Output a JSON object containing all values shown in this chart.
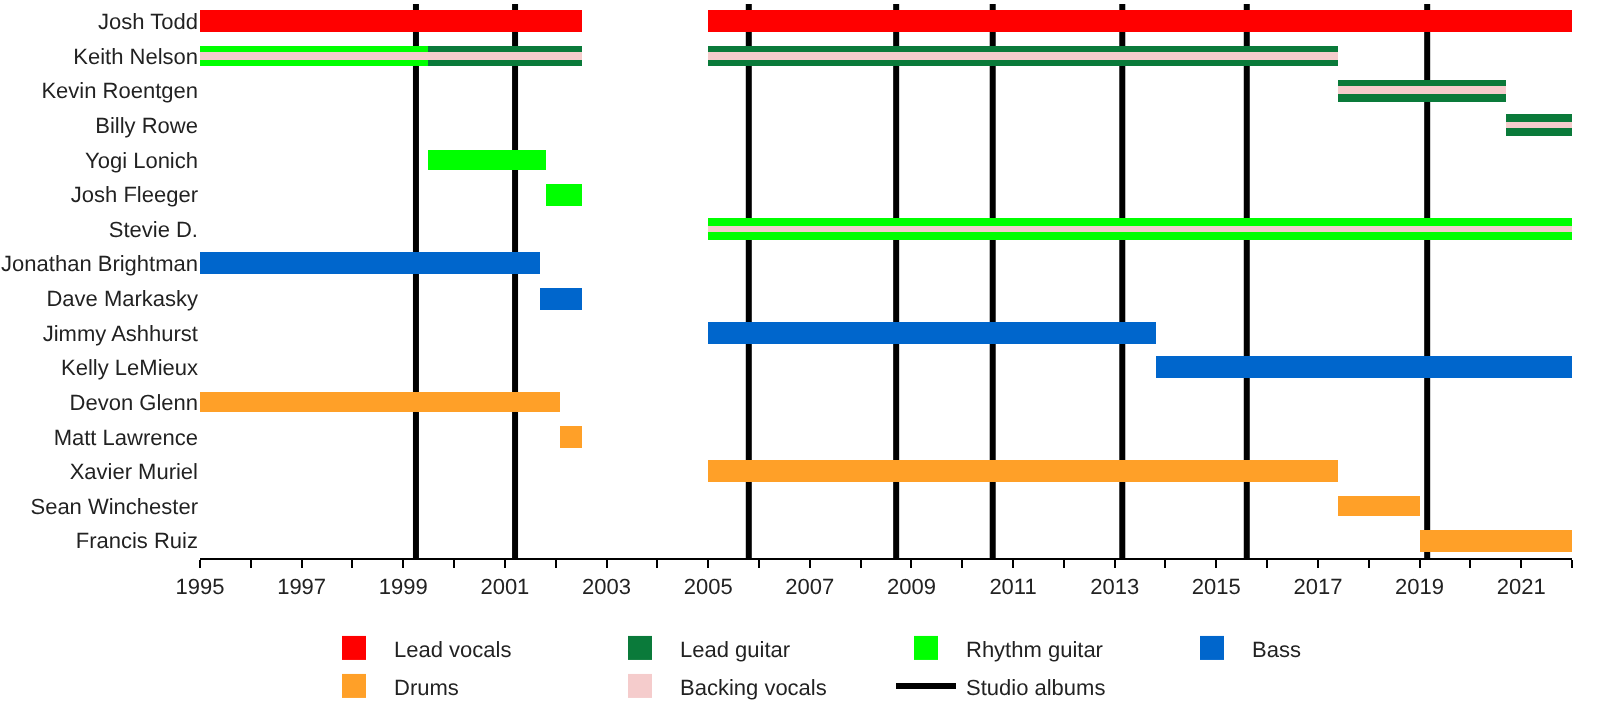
{
  "chart_data": {
    "type": "bar",
    "orientation": "horizontal",
    "categories": [
      "Josh Todd",
      "Keith Nelson",
      "Kevin Roentgen",
      "Billy Rowe",
      "Yogi Lonich",
      "Josh Fleeger",
      "Stevie D.",
      "Jonathan Brightman",
      "Dave Markasky",
      "Jimmy Ashhurst",
      "Kelly LeMieux",
      "Devon Glenn",
      "Matt Lawrence",
      "Xavier Muriel",
      "Sean Winchester",
      "Francis Ruiz"
    ],
    "series": [
      {
        "name": "Lead vocals",
        "color": "#ff0000",
        "base": [
          1995,
          null,
          null,
          null,
          null,
          null,
          null,
          null,
          null,
          null,
          null,
          null,
          null,
          null,
          null,
          null
        ],
        "values": [
          7.5,
          null,
          null,
          null,
          null,
          null,
          null,
          null,
          null,
          null,
          null,
          null,
          null,
          null,
          null,
          null
        ]
      },
      {
        "color": "#ff0000",
        "base": [
          2005,
          null,
          null,
          null,
          null,
          null,
          null,
          null,
          null,
          null,
          null,
          null,
          null,
          null,
          null,
          null
        ],
        "values": [
          17,
          null,
          null,
          null,
          null,
          null,
          null,
          null,
          null,
          null,
          null,
          null,
          null,
          null,
          null,
          null
        ]
      },
      {
        "name": "Lead guitar",
        "color": "#0a7a3a",
        "base": [
          null,
          1999.5,
          2017.4,
          2020.7,
          null,
          null,
          null,
          null,
          null,
          null,
          null,
          null,
          null,
          null,
          null,
          null
        ],
        "values": [
          null,
          3,
          3.3,
          1.3,
          null,
          null,
          null,
          null,
          null,
          null,
          null,
          null,
          null,
          null,
          null,
          null
        ]
      },
      {
        "color": "#0a7a3a",
        "base": [
          null,
          2005,
          null,
          null,
          null,
          null,
          null,
          null,
          null,
          null,
          null,
          null,
          null,
          null,
          null,
          null
        ],
        "values": [
          null,
          12.4,
          null,
          null,
          null,
          null,
          null,
          null,
          null,
          null,
          null,
          null,
          null,
          null,
          null,
          null
        ]
      },
      {
        "name": "Rhythm guitar",
        "color": "#00ff00",
        "base": [
          null,
          1995,
          null,
          null,
          1999.5,
          2001.8,
          2005,
          null,
          null,
          null,
          null,
          null,
          null,
          null,
          null,
          null
        ],
        "values": [
          null,
          4.5,
          null,
          null,
          2.3,
          0.7,
          17,
          null,
          null,
          null,
          null,
          null,
          null,
          null,
          null,
          null
        ]
      },
      {
        "name": "Bass",
        "color": "#0066cc",
        "base": [
          null,
          null,
          null,
          null,
          null,
          null,
          null,
          1995,
          2001.7,
          2005,
          2013.8,
          null,
          null,
          null,
          null,
          null
        ],
        "values": [
          null,
          null,
          null,
          null,
          null,
          null,
          null,
          6.7,
          0.8,
          8.8,
          8.2,
          null,
          null,
          null,
          null,
          null
        ]
      },
      {
        "name": "Drums",
        "color": "#ffa028",
        "base": [
          null,
          null,
          null,
          null,
          null,
          null,
          null,
          null,
          null,
          null,
          null,
          1995,
          2002.1,
          2005,
          2017.4,
          2019
        ],
        "values": [
          null,
          null,
          null,
          null,
          null,
          null,
          null,
          null,
          null,
          null,
          null,
          7.1,
          0.4,
          12.4,
          1.6,
          3
        ]
      },
      {
        "name": "Backing vocals",
        "color": "#f5cccc",
        "base": [
          null,
          1995,
          2017.4,
          2020.7,
          null,
          null,
          2005,
          null,
          null,
          null,
          null,
          null,
          null,
          null,
          null,
          null
        ],
        "values": [
          null,
          7.5,
          3.3,
          1.3,
          null,
          null,
          17,
          null,
          null,
          null,
          null,
          null,
          null,
          null,
          null,
          null
        ]
      },
      {
        "color": "#f5cccc",
        "base": [
          null,
          2005,
          null,
          null,
          null,
          null,
          null,
          null,
          null,
          null,
          null,
          null,
          null,
          null,
          null,
          null
        ],
        "values": [
          null,
          12.4,
          null,
          null,
          null,
          null,
          null,
          null,
          null,
          null,
          null,
          null,
          null,
          null,
          null,
          null
        ]
      }
    ],
    "xlim": [
      1995,
      2022
    ],
    "xticks": [
      1995,
      {
        "value": 1996,
        "label": null
      },
      1997,
      {
        "value": 1998,
        "label": null
      },
      1999,
      {
        "value": 2000,
        "label": null
      },
      2001,
      {
        "value": 2002,
        "label": null
      },
      2003,
      {
        "value": 2004,
        "label": null
      },
      2005,
      {
        "value": 2006,
        "label": null
      },
      2007,
      {
        "value": 2008,
        "label": null
      },
      2009,
      {
        "value": 2010,
        "label": null
      },
      2011,
      {
        "value": 2012,
        "label": null
      },
      2013,
      {
        "value": 2014,
        "label": null
      },
      2015,
      {
        "value": 2016,
        "label": null
      },
      2017,
      {
        "value": 2018,
        "label": null
      },
      2019,
      {
        "value": 2020,
        "label": null
      },
      2021,
      {
        "value": 2022,
        "label": null
      }
    ],
    "ref_lines": [
      {
        "axis": "x",
        "value": 1999.25,
        "label": "Studio albums",
        "color": "#000000"
      },
      {
        "axis": "x",
        "value": 2001.2,
        "color": "#000000"
      },
      {
        "axis": "x",
        "value": 2005.8,
        "color": "#000000"
      },
      {
        "axis": "x",
        "value": 2008.7,
        "color": "#000000"
      },
      {
        "axis": "x",
        "value": 2010.6,
        "color": "#000000"
      },
      {
        "axis": "x",
        "value": 2013.15,
        "color": "#000000"
      },
      {
        "axis": "x",
        "value": 2015.6,
        "color": "#000000"
      },
      {
        "axis": "x",
        "value": 2019.15,
        "color": "#000000"
      }
    ],
    "grid": false,
    "legend": "bottom"
  }
}
